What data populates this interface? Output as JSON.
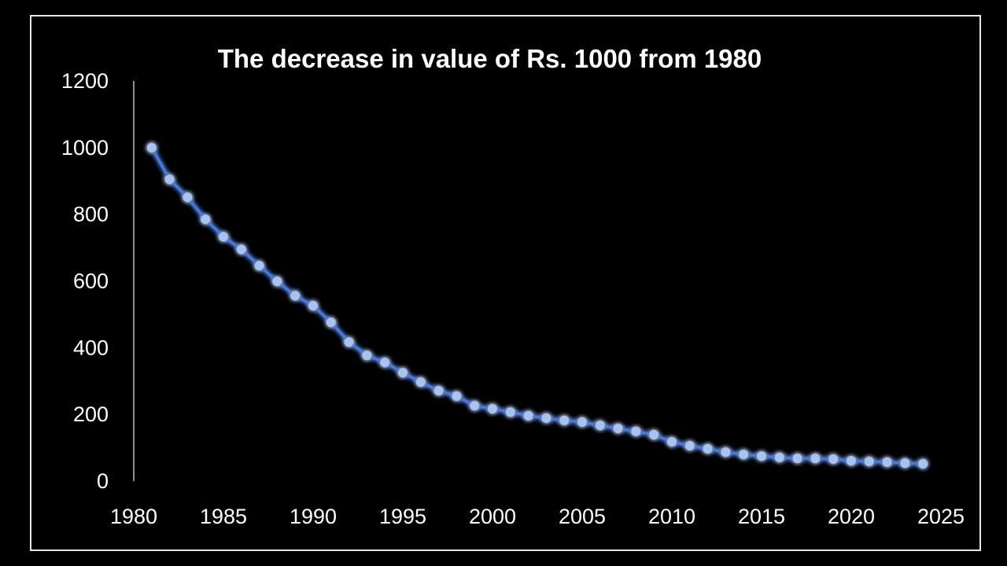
{
  "chart_data": {
    "type": "line",
    "title": "The decrease in value of Rs. 1000 from 1980",
    "xlabel": "",
    "ylabel": "",
    "xlim": [
      1980,
      2025
    ],
    "ylim": [
      0,
      1200
    ],
    "xticks": [
      1980,
      1985,
      1990,
      1995,
      2000,
      2005,
      2010,
      2015,
      2020,
      2025
    ],
    "yticks": [
      0,
      200,
      400,
      600,
      800,
      1000,
      1200
    ],
    "grid": false,
    "legend": "none",
    "colors": {
      "background": "#000000",
      "line": "#4a78d8",
      "marker": "#a9c3ef",
      "glow": "#2f6bff",
      "text": "#ffffff"
    },
    "series": [
      {
        "x": [
          1981,
          1982,
          1983,
          1984,
          1985,
          1986,
          1987,
          1988,
          1989,
          1990,
          1991,
          1992,
          1993,
          1994,
          1995,
          1996,
          1997,
          1998,
          1999,
          2000,
          2001,
          2002,
          2003,
          2004,
          2005,
          2006,
          2007,
          2008,
          2009,
          2010,
          2011,
          2012,
          2013,
          2014,
          2015,
          2016,
          2017,
          2018,
          2019,
          2020,
          2021,
          2022,
          2023,
          2024
        ],
        "y": [
          1000,
          905,
          851,
          785,
          733,
          695,
          646,
          599,
          556,
          526,
          476,
          417,
          377,
          356,
          325,
          297,
          271,
          255,
          226,
          217,
          207,
          196,
          189,
          182,
          177,
          167,
          158,
          149,
          139,
          118,
          106,
          97,
          87,
          80,
          75,
          71,
          68,
          68,
          66,
          61,
          59,
          57,
          54,
          52
        ]
      }
    ]
  }
}
